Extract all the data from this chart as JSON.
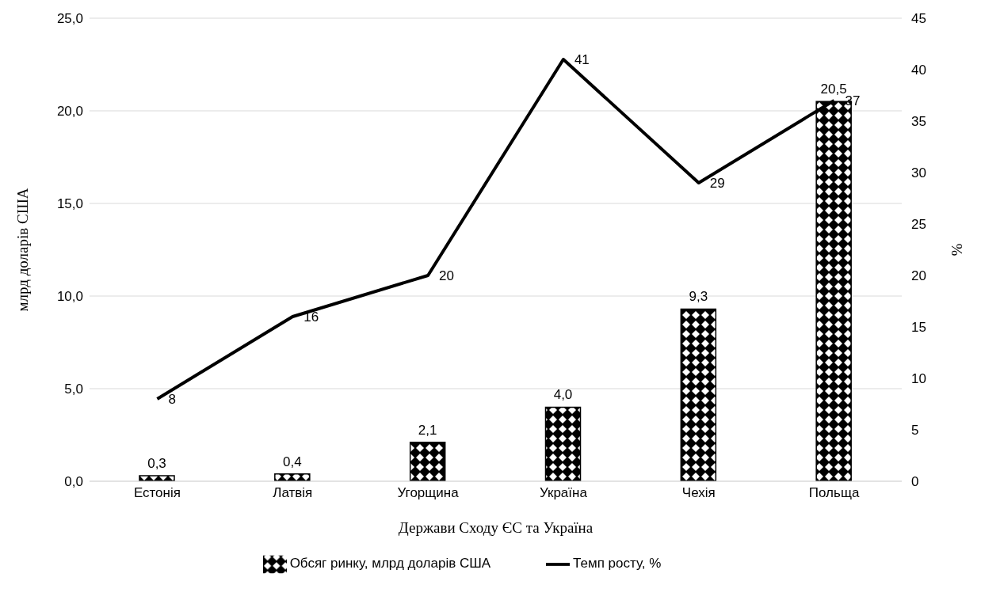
{
  "chart_data": {
    "type": "bar",
    "xlabel": "Держави Сходу ЄС та Україна",
    "ylabel": "млрд доларів США",
    "y2label": "%",
    "categories": [
      "Естонія",
      "Латвія",
      "Угорщина",
      "Україна",
      "Чехія",
      "Польща"
    ],
    "series": [
      {
        "name": "Обсяг ринку, млрд доларів США",
        "color": "#000000",
        "values": [
          0.3,
          0.4,
          2.1,
          4.0,
          9.3,
          20.5
        ],
        "value_labels": [
          "0,3",
          "0,4",
          "2,1",
          "4,0",
          "9,3",
          "20,5"
        ]
      },
      {
        "name": "Темп росту, %",
        "type": "line",
        "axis": "y2",
        "color": "#000000",
        "values": [
          8,
          16,
          20,
          41,
          29,
          37
        ],
        "value_labels": [
          "8",
          "16",
          "20",
          "41",
          "29",
          "37"
        ]
      }
    ],
    "ylim": [
      0,
      25
    ],
    "yticks": [
      {
        "value": 0,
        "label": "0,0"
      },
      {
        "value": 5,
        "label": "5,0"
      },
      {
        "value": 10,
        "label": "10,0"
      },
      {
        "value": 15,
        "label": "15,0"
      },
      {
        "value": 20,
        "label": "20,0"
      },
      {
        "value": 25,
        "label": "25,0"
      }
    ],
    "y2lim": [
      0,
      45
    ],
    "y2ticks": [
      0,
      5,
      10,
      15,
      20,
      25,
      30,
      35,
      40,
      45
    ],
    "grid": "y",
    "legend": "bottom",
    "marker": "none",
    "line_style": "solid"
  }
}
